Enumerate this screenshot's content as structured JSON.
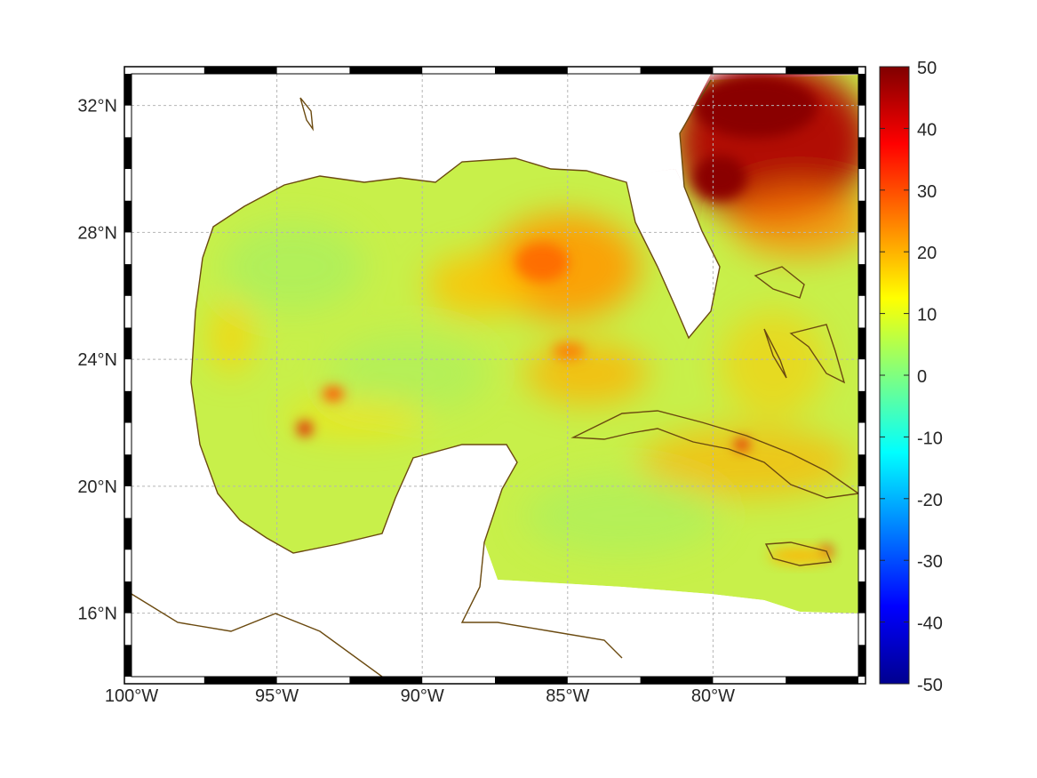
{
  "map": {
    "extent": {
      "lon_min": -100,
      "lon_max": -75,
      "lat_min": 14,
      "lat_max": 33
    },
    "x_ticks": [
      {
        "label": "100°W",
        "lon": -100
      },
      {
        "label": "95°W",
        "lon": -95
      },
      {
        "label": "90°W",
        "lon": -90
      },
      {
        "label": "85°W",
        "lon": -85
      },
      {
        "label": "80°W",
        "lon": -80
      }
    ],
    "y_ticks": [
      {
        "label": "32°N",
        "lat": 32
      },
      {
        "label": "28°N",
        "lat": 28
      },
      {
        "label": "24°N",
        "lat": 24
      },
      {
        "label": "20°N",
        "lat": 20
      },
      {
        "label": "16°N",
        "lat": 16
      }
    ],
    "grid": true,
    "coastline_color": "#6b4a10",
    "colors": {
      "ocean_background": "#c8f04a"
    }
  },
  "colorbar": {
    "min": -50,
    "max": 50,
    "colormap": "jet",
    "tick_labels": [
      "50",
      "40",
      "30",
      "20",
      "10",
      "0",
      "-10",
      "-20",
      "-30",
      "-40",
      "-50"
    ]
  }
}
